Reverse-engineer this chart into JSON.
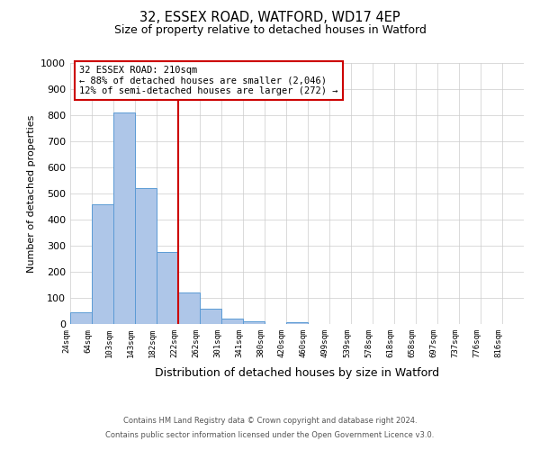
{
  "title": "32, ESSEX ROAD, WATFORD, WD17 4EP",
  "subtitle": "Size of property relative to detached houses in Watford",
  "xlabel": "Distribution of detached houses by size in Watford",
  "ylabel": "Number of detached properties",
  "bin_labels": [
    "24sqm",
    "64sqm",
    "103sqm",
    "143sqm",
    "182sqm",
    "222sqm",
    "262sqm",
    "301sqm",
    "341sqm",
    "380sqm",
    "420sqm",
    "460sqm",
    "499sqm",
    "539sqm",
    "578sqm",
    "618sqm",
    "658sqm",
    "697sqm",
    "737sqm",
    "776sqm",
    "816sqm"
  ],
  "bar_heights": [
    46,
    460,
    810,
    520,
    275,
    122,
    57,
    22,
    12,
    0,
    8,
    0,
    0,
    0,
    0,
    0,
    0,
    0,
    0,
    0,
    0
  ],
  "bar_color": "#aec6e8",
  "bar_edge_color": "#5b9bd5",
  "vline_x": 5.0,
  "vline_color": "#cc0000",
  "ylim": [
    0,
    1000
  ],
  "annotation_title": "32 ESSEX ROAD: 210sqm",
  "annotation_line1": "← 88% of detached houses are smaller (2,046)",
  "annotation_line2": "12% of semi-detached houses are larger (272) →",
  "annotation_box_color": "#ffffff",
  "annotation_box_edge": "#cc0000",
  "footer_line1": "Contains HM Land Registry data © Crown copyright and database right 2024.",
  "footer_line2": "Contains public sector information licensed under the Open Government Licence v3.0.",
  "background_color": "#ffffff",
  "grid_color": "#cccccc"
}
